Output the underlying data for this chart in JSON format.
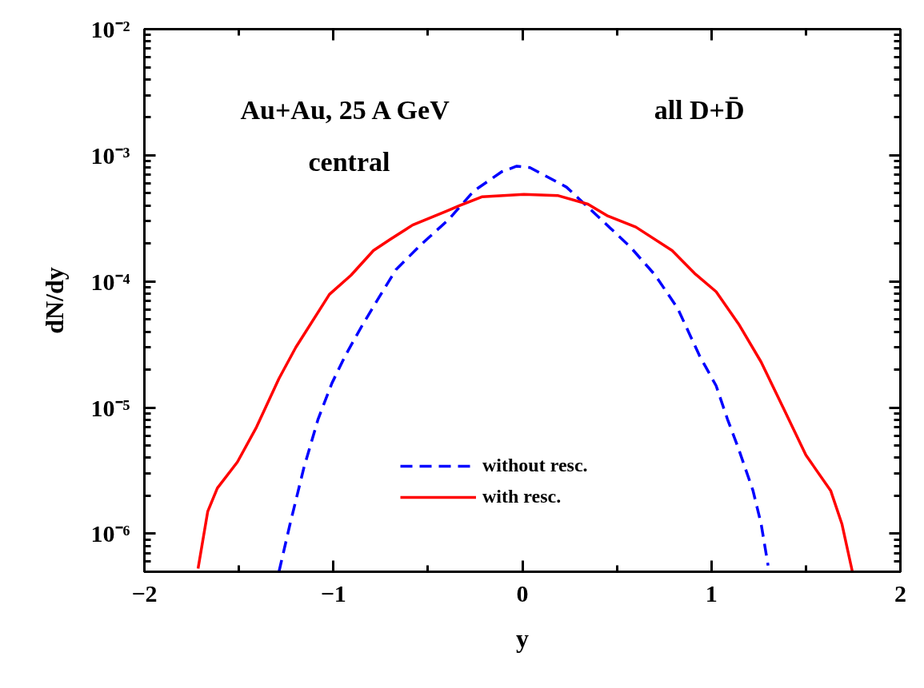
{
  "chart_data": {
    "type": "line",
    "xlabel": "y",
    "ylabel": "dN/dy",
    "annotations": [
      "Au+Au,  25 A GeV",
      "central",
      "all D+D̄"
    ],
    "xlim": [
      -2,
      2
    ],
    "xticks": [
      -2,
      -1,
      0,
      1,
      2
    ],
    "ylim": [
      5e-07,
      0.01
    ],
    "log": "y",
    "yticks": [
      {
        "value": 1e-06,
        "label": "10⁻⁶"
      },
      {
        "value": 1e-05,
        "label": "10⁻⁵"
      },
      {
        "value": 0.0001,
        "label": "10⁻⁴"
      },
      {
        "value": 0.001,
        "label": "10⁻³"
      },
      {
        "value": 0.01,
        "label": "10⁻²"
      }
    ],
    "grid": false,
    "legend": "bottom",
    "series": [
      {
        "name": "without resc.",
        "color": "#0000ff",
        "line_style": "dashed",
        "x": [
          -1.288,
          -1.229,
          -1.157,
          -1.081,
          -1.008,
          -0.936,
          -0.847,
          -0.758,
          -0.669,
          -0.538,
          -0.39,
          -0.258,
          -0.11,
          -0.03,
          0.04,
          0.233,
          0.407,
          0.572,
          0.703,
          0.822,
          0.936,
          1.025,
          1.085,
          1.144,
          1.22,
          1.263,
          1.3
        ],
        "values": [
          5e-07,
          1.2e-06,
          3.3e-06,
          8.1e-06,
          1.56e-05,
          2.6e-05,
          4.5e-05,
          7.5e-05,
          0.000124,
          0.000195,
          0.00031,
          0.00052,
          0.00074,
          0.00082,
          0.0008,
          0.00056,
          0.00032,
          0.000187,
          0.000112,
          6.1e-05,
          2.6e-05,
          1.49e-05,
          8.1e-06,
          4.7e-06,
          2.2e-06,
          1.2e-06,
          5.6e-07
        ]
      },
      {
        "name": "with resc.",
        "color": "#ff0000",
        "line_style": "solid",
        "x": [
          -1.716,
          -1.665,
          -1.614,
          -1.508,
          -1.407,
          -1.288,
          -1.199,
          -1.021,
          -0.907,
          -0.788,
          -0.699,
          -0.581,
          -0.403,
          -0.331,
          -0.212,
          0.008,
          0.186,
          0.347,
          0.453,
          0.6,
          0.792,
          0.911,
          1.025,
          1.144,
          1.263,
          1.381,
          1.5,
          1.631,
          1.691,
          1.746
        ],
        "values": [
          5.3e-07,
          1.5e-06,
          2.3e-06,
          3.7e-06,
          7e-06,
          1.7e-05,
          3e-05,
          7.9e-05,
          0.000112,
          0.000176,
          0.000216,
          0.00028,
          0.00036,
          0.0004,
          0.00047,
          0.00049,
          0.00048,
          0.00041,
          0.00033,
          0.00027,
          0.000176,
          0.000116,
          8.3e-05,
          4.6e-05,
          2.3e-05,
          9.9e-06,
          4.2e-06,
          2.2e-06,
          1.19e-06,
          5e-07
        ]
      }
    ]
  }
}
